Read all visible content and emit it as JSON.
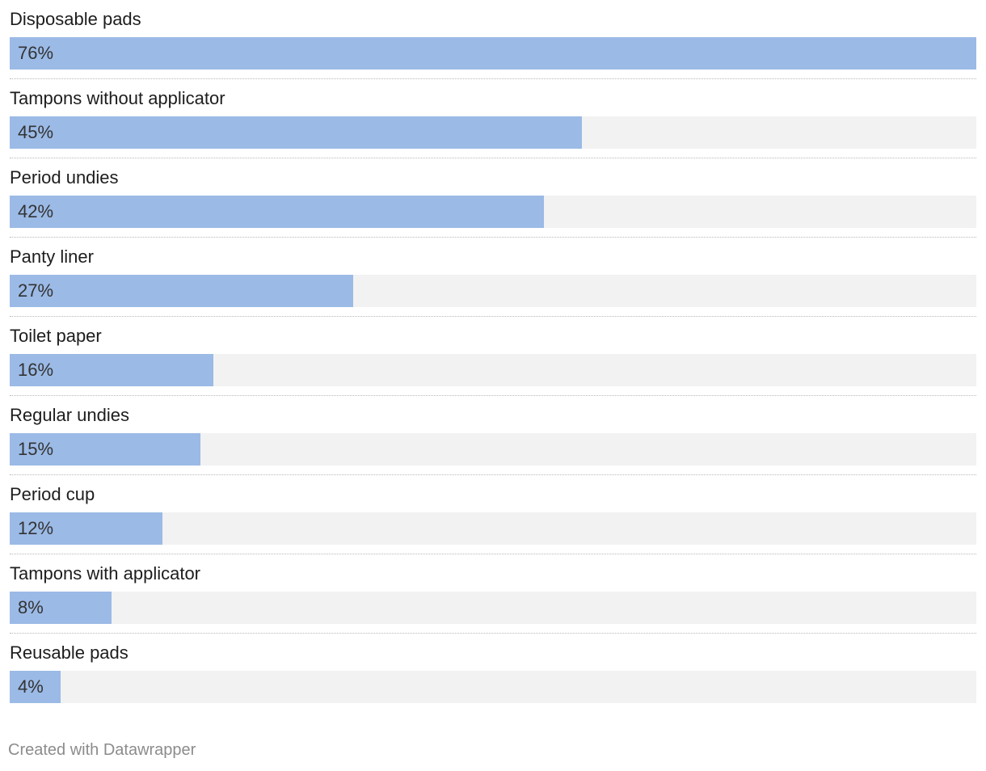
{
  "chart_data": {
    "type": "bar",
    "orientation": "horizontal",
    "categories": [
      "Disposable pads",
      "Tampons without applicator",
      "Period undies",
      "Panty liner",
      "Toilet paper",
      "Regular undies",
      "Period cup",
      "Tampons with applicator",
      "Reusable pads"
    ],
    "values": [
      76,
      45,
      42,
      27,
      16,
      15,
      12,
      8,
      4
    ],
    "value_labels": [
      "76%",
      "45%",
      "42%",
      "27%",
      "16%",
      "15%",
      "12%",
      "8%",
      "4%"
    ],
    "xlim": [
      0,
      76
    ],
    "grid": false,
    "legend": "none",
    "colors": {
      "bar": "#9bbae6",
      "track": "#f2f2f2"
    }
  },
  "footer": {
    "credit": "Created with Datawrapper"
  }
}
